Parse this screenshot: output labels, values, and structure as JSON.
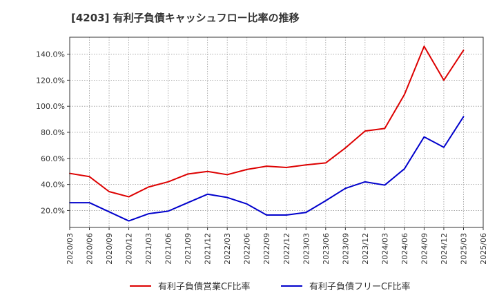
{
  "chart_data": {
    "type": "line",
    "title": "[4203]  有利子負債キャッシュフロー比率の推移",
    "x": [
      "2020/03",
      "2020/06",
      "2020/09",
      "2020/12",
      "2021/03",
      "2021/06",
      "2021/09",
      "2021/12",
      "2022/03",
      "2022/06",
      "2022/09",
      "2022/12",
      "2023/03",
      "2023/06",
      "2023/09",
      "2023/12",
      "2024/03",
      "2024/06",
      "2024/09",
      "2024/12",
      "2025/03"
    ],
    "x_ticks": [
      "2020/03",
      "2020/06",
      "2020/09",
      "2020/12",
      "2021/03",
      "2021/06",
      "2021/09",
      "2021/12",
      "2022/03",
      "2022/06",
      "2022/09",
      "2022/12",
      "2023/03",
      "2023/06",
      "2023/09",
      "2023/12",
      "2024/03",
      "2024/06",
      "2024/09",
      "2024/12",
      "2025/03",
      "2025/06"
    ],
    "y_ticks": [
      "20.0%",
      "40.0%",
      "60.0%",
      "80.0%",
      "100.0%",
      "120.0%",
      "140.0%"
    ],
    "y_tick_values": [
      20,
      40,
      60,
      80,
      100,
      120,
      140
    ],
    "ylim": [
      7,
      153
    ],
    "grid": true,
    "legend_position": "bottom",
    "series": [
      {
        "name": "有利子負債営業CF比率",
        "color": "#dd0000",
        "values": [
          48.5,
          46,
          34.5,
          30.5,
          38,
          42,
          48,
          50,
          47.5,
          51.5,
          54,
          53,
          55,
          56.5,
          68,
          81,
          83,
          109,
          146,
          120,
          143
        ]
      },
      {
        "name": "有利子負債フリーCF比率",
        "color": "#0000cc",
        "values": [
          26,
          26,
          19,
          12,
          17.5,
          19.5,
          26,
          32.5,
          30,
          25,
          16.5,
          16.5,
          18.5,
          27.5,
          37,
          42,
          39.5,
          52,
          76.5,
          68.5,
          92
        ]
      }
    ]
  }
}
